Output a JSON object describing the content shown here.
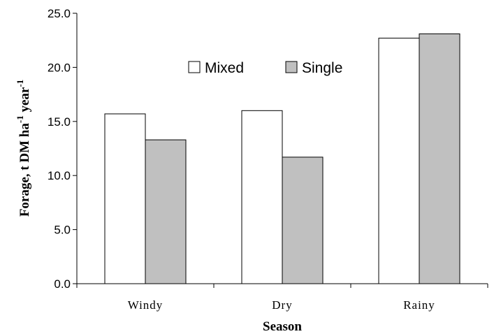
{
  "chart_data": {
    "type": "bar",
    "categories": [
      "Windy",
      "Dry",
      "Rainy"
    ],
    "series": [
      {
        "name": "Mixed",
        "values": [
          15.7,
          16.0,
          22.7
        ],
        "color": "#ffffff"
      },
      {
        "name": "Single",
        "values": [
          13.3,
          11.7,
          23.1
        ],
        "color": "#c0c0c0"
      }
    ],
    "ylim": [
      0,
      25
    ],
    "yticks": [
      "0.0",
      "5.0",
      "10.0",
      "15.0",
      "20.0",
      "25.0"
    ],
    "xlabel": "Season",
    "ylabel": {
      "p1": "Forage, t DM ha",
      "s1": "-1",
      "p2": " year",
      "s2": "-1"
    },
    "legend_position": "top-center",
    "grid": false
  }
}
